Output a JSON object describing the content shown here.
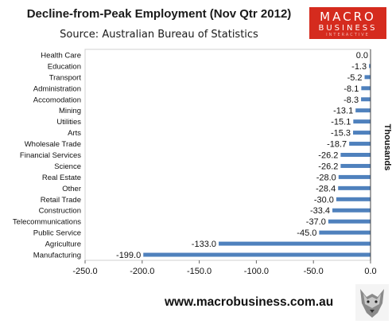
{
  "header": {
    "title": "Decline-from-Peak Employment  (Nov Qtr 2012)",
    "subtitle": "Source: Australian Bureau of Statistics"
  },
  "logo": {
    "line1": "MACRO",
    "line2": "BUSINESS",
    "line3": "INTERACTIVE"
  },
  "footer": {
    "url": "www.macrobusiness.com.au"
  },
  "colors": {
    "bar": "#4f81bd",
    "logo_bg": "#d52b1e"
  },
  "chart_data": {
    "type": "bar",
    "orientation": "horizontal",
    "title": "Decline-from-Peak Employment  (Nov Qtr 2012)",
    "subtitle": "Source: Australian Bureau of Statistics",
    "xlabel": "",
    "ylabel": "Thousands",
    "xlim": [
      -250,
      0
    ],
    "ticks": [
      "-250.0",
      "-200.0",
      "-150.0",
      "-100.0",
      "-50.0",
      "0.0"
    ],
    "tick_values": [
      -250,
      -200,
      -150,
      -100,
      -50,
      0
    ],
    "categories": [
      "Health Care",
      "Education",
      "Transport",
      "Administration",
      "Accomodation",
      "Mining",
      "Utilities",
      "Arts",
      "Wholesale Trade",
      "Financial Services",
      "Science",
      "Real Estate",
      "Other",
      "Retail Trade",
      "Construction",
      "Telecommunications",
      "Public Service",
      "Agriculture",
      "Manufacturing"
    ],
    "values": [
      0.0,
      -1.3,
      -5.2,
      -8.1,
      -8.3,
      -13.1,
      -15.1,
      -15.3,
      -18.7,
      -26.2,
      -26.2,
      -28.0,
      -28.4,
      -30.0,
      -33.4,
      -37.0,
      -45.0,
      -133.0,
      -199.0
    ],
    "labels": [
      "0.0",
      "-1.3",
      "-5.2",
      "-8.1",
      "-8.3",
      "-13.1",
      "-15.1",
      "-15.3",
      "-18.7",
      "-26.2",
      "-26.2",
      "-28.0",
      "-28.4",
      "-30.0",
      "-33.4",
      "-37.0",
      "-45.0",
      "-133.0",
      "-199.0"
    ],
    "grid": false,
    "legend": "none"
  }
}
